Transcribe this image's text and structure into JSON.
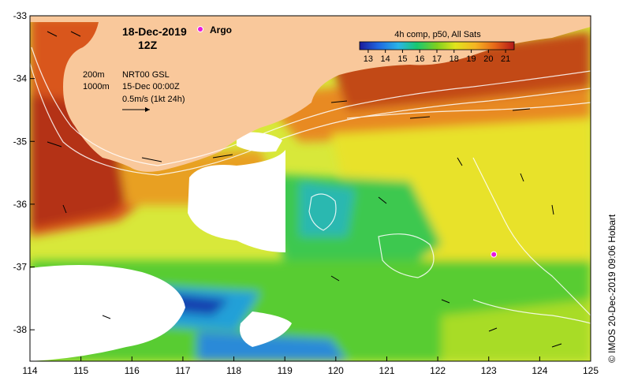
{
  "map": {
    "date": "18-Dec-2019",
    "hour": "12Z",
    "argo_label": "Argo",
    "product": "4h comp, p50, All Sats",
    "colorbar_ticks": [
      "13",
      "14",
      "15",
      "16",
      "17",
      "18",
      "19",
      "20",
      "21"
    ],
    "colorbar_range": [
      12.5,
      21.5
    ],
    "legend_lines": [
      "200m",
      "1000m",
      "NRT00 GSL",
      "15-Dec 00:00Z",
      "0.5m/s (1kt 24h)"
    ],
    "x_ticks": [
      "114",
      "115",
      "116",
      "117",
      "118",
      "119",
      "120",
      "121",
      "122",
      "123",
      "124",
      "125"
    ],
    "y_ticks": [
      "-33",
      "-34",
      "-35",
      "-36",
      "-37",
      "-38"
    ],
    "lon_range": [
      114,
      125
    ],
    "lat_range": [
      -38.5,
      -33
    ],
    "argo_float": {
      "lon": 123.1,
      "lat": -36.8
    },
    "credit": "© IMOS 20-Dec-2019 09:06 Hobart",
    "colors": {
      "land": "#f9c89b",
      "argo": "#e818e0",
      "bathymetry": "#ffffff",
      "arrows": "#000000"
    }
  }
}
